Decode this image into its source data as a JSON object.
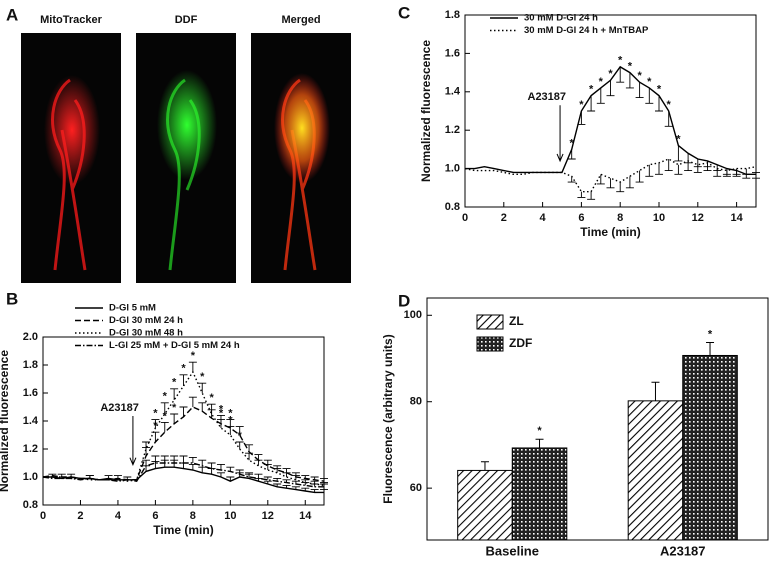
{
  "figure": {
    "panel_labels": [
      "A",
      "B",
      "C",
      "D"
    ],
    "images": [
      "MitoTracker",
      "DDF",
      "Merged"
    ]
  },
  "chart_data": [
    {
      "type": "line",
      "x_label": "Time (min)",
      "y_label": "Normalized fluorescence",
      "x": [
        0,
        0.5,
        1,
        1.5,
        2,
        2.5,
        3,
        3.5,
        4,
        4.5,
        5,
        5.5,
        6,
        6.5,
        7,
        7.5,
        8,
        8.5,
        9,
        9.5,
        10,
        10.5,
        11,
        11.5,
        12,
        12.5,
        13,
        13.5,
        14,
        14.5,
        15
      ],
      "xlim": [
        0,
        15
      ],
      "xticks": [
        0,
        2,
        4,
        6,
        8,
        10,
        12,
        14
      ],
      "ylim": [
        0.8,
        1.8
      ],
      "yticks": [
        0.8,
        {
          "value": 1,
          "label": "1.0"
        },
        1.2,
        1.4,
        1.6,
        1.8
      ],
      "legend": "top",
      "significance_label": "*",
      "annotation": {
        "text": "A23187",
        "x": 4.9
      },
      "series": [
        {
          "name": "30 mM D-Gl 24 h",
          "color": "#000000",
          "dash": "solid",
          "error_side": "down",
          "values": [
            1.0,
            1.0,
            1.01,
            1.0,
            0.99,
            0.98,
            0.98,
            0.98,
            0.98,
            0.98,
            0.98,
            1.1,
            1.3,
            1.38,
            1.42,
            1.46,
            1.53,
            1.5,
            1.45,
            1.42,
            1.38,
            1.3,
            1.12,
            1.08,
            1.05,
            1.04,
            1.02,
            1.0,
            0.99,
            0.97,
            0.97
          ],
          "errors": [
            null,
            null,
            null,
            null,
            null,
            null,
            null,
            null,
            null,
            null,
            null,
            0.05,
            0.07,
            0.08,
            0.08,
            0.08,
            0.08,
            0.08,
            0.08,
            0.08,
            0.08,
            0.08,
            0.08,
            0.05,
            0.04,
            0.03,
            0.03,
            0.03,
            0.03,
            0.02,
            0.02
          ],
          "significant_x": [
            5.5,
            6,
            6.5,
            7,
            7.5,
            8,
            8.5,
            9,
            9.5,
            10,
            10.5,
            11
          ]
        },
        {
          "name": "30 mM D-Gl 24 h + MnTBAP",
          "color": "#000000",
          "dash": "dotted",
          "error_side": "down",
          "values": [
            1.0,
            0.99,
            0.99,
            0.99,
            0.98,
            0.97,
            0.97,
            0.98,
            0.98,
            0.98,
            0.98,
            0.96,
            0.88,
            0.88,
            0.97,
            0.95,
            0.93,
            0.96,
            0.99,
            1.02,
            1.03,
            1.05,
            1.02,
            1.04,
            1.02,
            1.03,
            1.0,
            0.99,
            1.0,
            1.0,
            1.01
          ],
          "errors": [
            null,
            null,
            null,
            null,
            null,
            null,
            null,
            null,
            null,
            null,
            null,
            0.03,
            0.03,
            0.04,
            0.05,
            0.05,
            0.05,
            0.06,
            0.06,
            0.06,
            0.06,
            0.06,
            0.05,
            0.05,
            0.04,
            0.04,
            0.04,
            0.03,
            0.03,
            0.03,
            0.03
          ],
          "significant_x": []
        }
      ]
    },
    {
      "type": "line",
      "x_label": "Time (min)",
      "y_label": "Normalized fluorescence",
      "x": [
        0,
        0.5,
        1,
        1.5,
        2,
        2.5,
        3,
        3.5,
        4,
        4.5,
        5,
        5.5,
        6,
        6.5,
        7,
        7.5,
        8,
        8.5,
        9,
        9.5,
        10,
        10.5,
        11,
        11.5,
        12,
        12.5,
        13,
        13.5,
        14,
        14.5,
        15
      ],
      "xlim": [
        0,
        15
      ],
      "xticks": [
        0,
        2,
        4,
        6,
        8,
        10,
        12,
        14
      ],
      "ylim": [
        0.8,
        2.0
      ],
      "yticks": [
        0.8,
        {
          "value": 1,
          "label": "1.0"
        },
        1.2,
        1.4,
        1.6,
        1.8,
        {
          "value": 2,
          "label": "2.0"
        }
      ],
      "legend": "top",
      "significance_label": "*",
      "annotation": {
        "text": "A23187",
        "x": 4.8
      },
      "series": [
        {
          "name": "D-Gl 5 mM",
          "color": "#000000",
          "dash": "solid",
          "error_side": "up",
          "values": [
            1.0,
            1.0,
            0.99,
            1.0,
            0.99,
            0.99,
            0.98,
            0.99,
            0.98,
            0.98,
            0.98,
            1.04,
            1.06,
            1.07,
            1.07,
            1.06,
            1.05,
            1.03,
            1.02,
            1.0,
            0.97,
            1.0,
            0.99,
            0.97,
            0.95,
            0.93,
            0.92,
            0.91,
            0.9,
            0.89,
            0.89
          ],
          "errors": [
            null,
            0.02,
            null,
            0.02,
            null,
            0.02,
            null,
            0.02,
            null,
            0.02,
            null,
            0.04,
            0.05,
            0.05,
            0.05,
            0.04,
            0.04,
            0.04,
            0.04,
            0.03,
            0.03,
            0.03,
            0.03,
            0.02,
            0.02,
            0.02,
            0.02,
            0.02,
            0.02,
            0.02,
            0.02
          ],
          "significant_x": []
        },
        {
          "name": "D-Gl 30 mM 24 h",
          "color": "#000000",
          "dash": "dashed",
          "error_side": "up",
          "values": [
            1.0,
            1.01,
            1.0,
            1.0,
            0.99,
            0.99,
            0.98,
            0.98,
            0.99,
            0.98,
            0.98,
            1.15,
            1.25,
            1.32,
            1.38,
            1.43,
            1.5,
            1.47,
            1.42,
            1.38,
            1.35,
            1.3,
            1.18,
            1.12,
            1.08,
            1.05,
            1.03,
            1.0,
            0.99,
            0.98,
            0.97
          ],
          "errors": [
            null,
            null,
            0.02,
            null,
            null,
            0.02,
            null,
            null,
            0.02,
            null,
            null,
            0.06,
            0.07,
            0.07,
            0.07,
            0.07,
            0.07,
            0.06,
            0.06,
            0.06,
            0.06,
            0.06,
            0.05,
            0.04,
            0.04,
            0.03,
            0.03,
            0.03,
            0.02,
            0.02,
            0.02
          ],
          "significant_x": [
            6,
            6.5,
            7,
            9.5,
            10
          ]
        },
        {
          "name": "D-Gl 30 mM 48 h",
          "color": "#000000",
          "dash": "dotted",
          "error_side": "up",
          "values": [
            1.0,
            1.0,
            1.0,
            0.99,
            0.99,
            0.98,
            0.98,
            0.98,
            0.98,
            0.97,
            0.98,
            1.2,
            1.35,
            1.45,
            1.55,
            1.65,
            1.75,
            1.6,
            1.45,
            1.35,
            1.3,
            1.2,
            1.12,
            1.08,
            1.05,
            1.03,
            1.0,
            0.98,
            0.96,
            0.95,
            0.94
          ],
          "errors": [
            null,
            null,
            null,
            null,
            null,
            null,
            null,
            null,
            null,
            null,
            null,
            0.05,
            0.06,
            0.08,
            0.08,
            0.08,
            0.07,
            0.07,
            0.07,
            0.06,
            0.06,
            0.05,
            0.05,
            0.04,
            0.04,
            0.03,
            0.03,
            0.03,
            0.02,
            0.02,
            0.02
          ],
          "significant_x": [
            6,
            6.5,
            7,
            7.5,
            8,
            8.5,
            9,
            9.5,
            10,
            10.5
          ]
        },
        {
          "name": "L-Gl 25 mM + D-Gl 5 mM 24 h",
          "color": "#000000",
          "dash": "dashdot",
          "error_side": "up",
          "values": [
            1.0,
            0.99,
            0.99,
            0.99,
            0.98,
            0.99,
            0.98,
            0.98,
            0.97,
            0.98,
            0.97,
            1.08,
            1.1,
            1.1,
            1.1,
            1.1,
            1.1,
            1.08,
            1.06,
            1.05,
            1.04,
            1.02,
            1.0,
            0.99,
            0.98,
            0.97,
            0.96,
            0.95,
            0.94,
            0.93,
            0.93
          ],
          "errors": [
            null,
            null,
            null,
            null,
            null,
            null,
            null,
            null,
            null,
            null,
            null,
            0.04,
            0.05,
            0.05,
            0.05,
            0.05,
            0.04,
            0.04,
            0.04,
            0.04,
            0.03,
            0.03,
            0.03,
            0.03,
            0.02,
            0.02,
            0.02,
            0.02,
            0.02,
            0.02,
            0.02
          ],
          "significant_x": []
        }
      ]
    },
    {
      "type": "bar",
      "y_label": "Fluorescence (arbitrary units)",
      "categories": [
        "Baseline",
        "A23187"
      ],
      "ylim": [
        48,
        104
      ],
      "yticks": [
        60,
        80,
        100
      ],
      "legend": "upper-left",
      "significance_label": "*",
      "series": [
        {
          "name": "ZL",
          "color": "#000000",
          "pattern": "hatch",
          "values": [
            64.1,
            80.2
          ],
          "errors": [
            2.0,
            4.3
          ],
          "significant": [
            false,
            false
          ]
        },
        {
          "name": "ZDF",
          "color": "#000000",
          "pattern": "dots",
          "values": [
            69.3,
            90.7
          ],
          "errors": [
            2.0,
            3.0
          ],
          "significant": [
            true,
            true
          ]
        }
      ]
    }
  ]
}
